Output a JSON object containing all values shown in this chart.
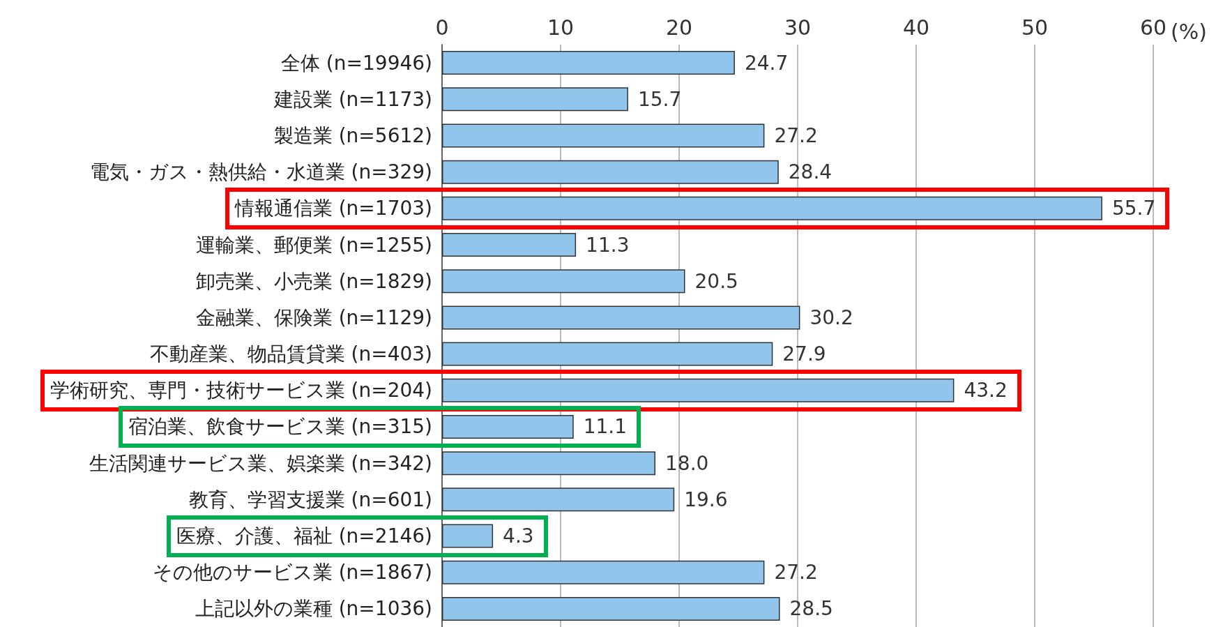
{
  "chart_data": {
    "type": "bar",
    "orientation": "horizontal",
    "xlabel": "(%)",
    "categories": [
      "全体 (n=19946)",
      "建設業 (n=1173)",
      "製造業 (n=5612)",
      "電気・ガス・熱供給・水道業 (n=329)",
      "情報通信業 (n=1703)",
      "運輸業、郵便業 (n=1255)",
      "卸売業、小売業 (n=1829)",
      "金融業、保険業 (n=1129)",
      "不動産業、物品賃貸業 (n=403)",
      "学術研究、専門・技術サービス業 (n=204)",
      "宿泊業、飲食サービス業 (n=315)",
      "生活関連サービス業、娯楽業 (n=342)",
      "教育、学習支援業 (n=601)",
      "医療、介護、福祉 (n=2146)",
      "その他のサービス業 (n=1867)",
      "上記以外の業種 (n=1036)"
    ],
    "values": [
      24.7,
      15.7,
      27.2,
      28.4,
      55.7,
      11.3,
      20.5,
      30.2,
      27.9,
      43.2,
      11.1,
      18.0,
      19.6,
      4.3,
      27.2,
      28.5
    ],
    "value_labels": [
      "24.7",
      "15.7",
      "27.2",
      "28.4",
      "55.7",
      "11.3",
      "20.5",
      "30.2",
      "27.9",
      "43.2",
      "11.1",
      "18.0",
      "19.6",
      "4.3",
      "27.2",
      "28.5"
    ],
    "color": "#92c5ec",
    "xlim": [
      0,
      60
    ],
    "xticks": [
      0,
      10,
      20,
      30,
      40,
      50,
      60
    ],
    "grid": "x"
  }
}
